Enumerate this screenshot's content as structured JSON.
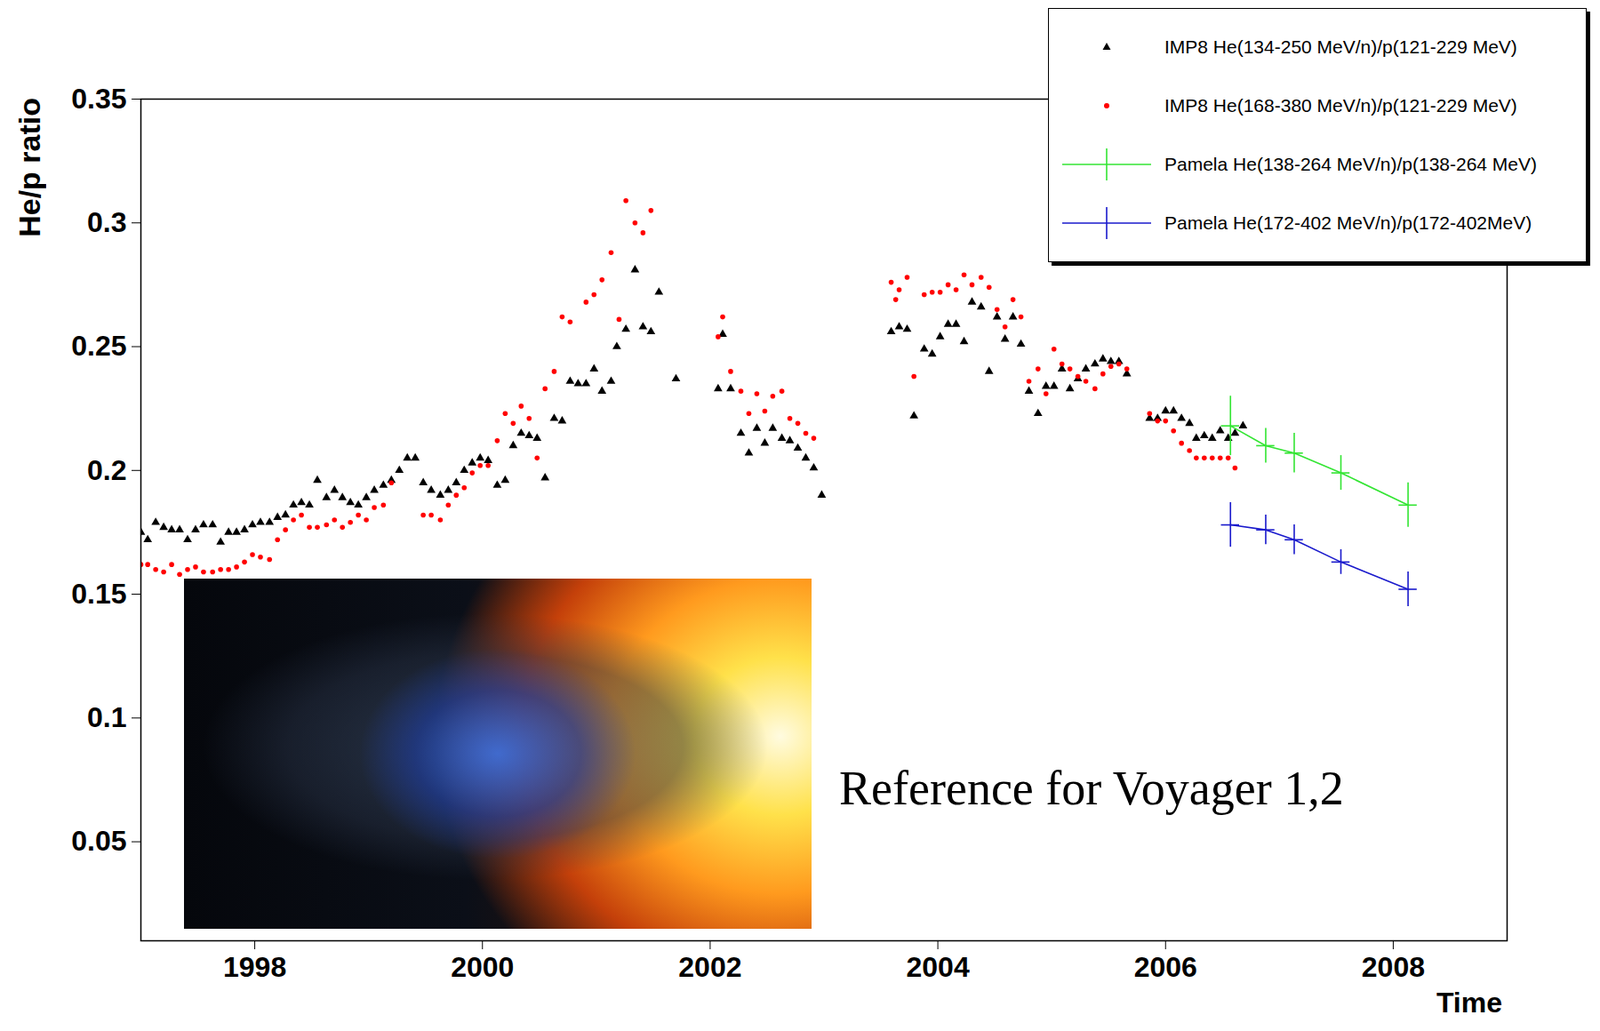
{
  "chart_data": {
    "type": "scatter",
    "x_label": "Time",
    "y_label": "He/p ratio",
    "annotation": "Reference for Voyager 1,2",
    "xlim": [
      1997,
      2009
    ],
    "xticks": [
      1998,
      2000,
      2002,
      2004,
      2006,
      2008
    ],
    "ylim": [
      0.01,
      0.35
    ],
    "yticks": [
      0.05,
      0.1,
      0.15,
      0.2,
      0.25,
      0.3,
      0.35
    ],
    "grid": false,
    "legend": "top-right",
    "series": [
      {
        "name": "IMP8 He(134-250 MeV/n)/p(121-229 MeV)",
        "type": "scatter",
        "marker": "triangle",
        "color": "#000000",
        "x": [
          1997.0,
          1997.06,
          1997.13,
          1997.2,
          1997.27,
          1997.34,
          1997.41,
          1997.48,
          1997.55,
          1997.63,
          1997.7,
          1997.77,
          1997.84,
          1997.91,
          1997.98,
          1998.05,
          1998.13,
          1998.2,
          1998.27,
          1998.34,
          1998.41,
          1998.48,
          1998.55,
          1998.63,
          1998.7,
          1998.77,
          1998.84,
          1998.91,
          1998.98,
          1999.05,
          1999.13,
          1999.2,
          1999.27,
          1999.34,
          1999.41,
          1999.48,
          1999.55,
          1999.63,
          1999.7,
          1999.77,
          1999.84,
          1999.91,
          1999.98,
          2000.05,
          2000.13,
          2000.2,
          2000.27,
          2000.34,
          2000.41,
          2000.48,
          2000.55,
          2000.63,
          2000.7,
          2000.77,
          2000.84,
          2000.91,
          2000.98,
          2001.05,
          2001.13,
          2001.18,
          2001.26,
          2001.34,
          2001.41,
          2001.48,
          2001.55,
          2001.7,
          2002.07,
          2002.11,
          2002.18,
          2002.27,
          2002.34,
          2002.41,
          2002.48,
          2002.55,
          2002.63,
          2002.7,
          2002.77,
          2002.84,
          2002.91,
          2002.98,
          2003.59,
          2003.66,
          2003.73,
          2003.79,
          2003.88,
          2003.95,
          2004.02,
          2004.09,
          2004.16,
          2004.23,
          2004.3,
          2004.38,
          2004.45,
          2004.52,
          2004.59,
          2004.66,
          2004.73,
          2004.8,
          2004.88,
          2004.95,
          2005.02,
          2005.09,
          2005.16,
          2005.23,
          2005.3,
          2005.38,
          2005.45,
          2005.52,
          2005.59,
          2005.66,
          2005.86,
          2005.93,
          2006.0,
          2006.07,
          2006.14,
          2006.21,
          2006.27,
          2006.34,
          2006.41,
          2006.48,
          2006.55,
          2006.61,
          2006.68
        ],
        "values": [
          0.175,
          0.172,
          0.179,
          0.177,
          0.176,
          0.176,
          0.172,
          0.176,
          0.178,
          0.178,
          0.171,
          0.175,
          0.175,
          0.176,
          0.178,
          0.179,
          0.179,
          0.181,
          0.182,
          0.186,
          0.187,
          0.186,
          0.196,
          0.189,
          0.192,
          0.189,
          0.187,
          0.186,
          0.189,
          0.192,
          0.194,
          0.196,
          0.2,
          0.205,
          0.205,
          0.195,
          0.192,
          0.19,
          0.192,
          0.195,
          0.2,
          0.203,
          0.205,
          0.204,
          0.194,
          0.196,
          0.21,
          0.215,
          0.214,
          0.213,
          0.197,
          0.221,
          0.22,
          0.236,
          0.235,
          0.235,
          0.241,
          0.232,
          0.236,
          0.25,
          0.257,
          0.281,
          0.258,
          0.256,
          0.272,
          0.237,
          0.233,
          0.255,
          0.233,
          0.215,
          0.207,
          0.217,
          0.211,
          0.217,
          0.213,
          0.212,
          0.209,
          0.205,
          0.201,
          0.19,
          0.256,
          0.258,
          0.257,
          0.222,
          0.249,
          0.247,
          0.254,
          0.259,
          0.259,
          0.252,
          0.268,
          0.266,
          0.24,
          0.262,
          0.253,
          0.262,
          0.251,
          0.232,
          0.223,
          0.234,
          0.234,
          0.241,
          0.233,
          0.237,
          0.241,
          0.243,
          0.245,
          0.244,
          0.244,
          0.239,
          0.221,
          0.221,
          0.224,
          0.224,
          0.221,
          0.219,
          0.213,
          0.214,
          0.213,
          0.216,
          0.213,
          0.215,
          0.218
        ]
      },
      {
        "name": "IMP8 He(168-380 MeV/n)/p(121-229 MeV)",
        "type": "scatter",
        "marker": "circle",
        "color": "#ff0000",
        "x": [
          1997.0,
          1997.06,
          1997.13,
          1997.2,
          1997.27,
          1997.34,
          1997.41,
          1997.48,
          1997.55,
          1997.63,
          1997.7,
          1997.77,
          1997.84,
          1997.91,
          1997.98,
          1998.05,
          1998.13,
          1998.2,
          1998.27,
          1998.34,
          1998.41,
          1998.48,
          1998.55,
          1998.63,
          1998.7,
          1998.77,
          1998.84,
          1998.91,
          1998.98,
          1999.05,
          1999.13,
          1999.2,
          1999.48,
          1999.55,
          1999.63,
          1999.7,
          1999.77,
          1999.84,
          1999.91,
          1999.98,
          2000.05,
          2000.13,
          2000.2,
          2000.27,
          2000.34,
          2000.41,
          2000.48,
          2000.55,
          2000.63,
          2000.7,
          2000.77,
          2000.91,
          2000.98,
          2001.05,
          2001.13,
          2001.2,
          2001.26,
          2001.34,
          2001.41,
          2001.48,
          2002.07,
          2002.11,
          2002.18,
          2002.27,
          2002.34,
          2002.41,
          2002.48,
          2002.55,
          2002.63,
          2002.7,
          2002.77,
          2002.84,
          2002.91,
          2003.59,
          2003.63,
          2003.66,
          2003.73,
          2003.79,
          2003.88,
          2003.95,
          2004.02,
          2004.09,
          2004.16,
          2004.23,
          2004.3,
          2004.38,
          2004.45,
          2004.52,
          2004.59,
          2004.66,
          2004.73,
          2004.8,
          2004.88,
          2004.95,
          2005.02,
          2005.09,
          2005.16,
          2005.23,
          2005.3,
          2005.38,
          2005.45,
          2005.52,
          2005.59,
          2005.66,
          2005.86,
          2005.93,
          2006.0,
          2006.07,
          2006.14,
          2006.21,
          2006.27,
          2006.34,
          2006.41,
          2006.48,
          2006.55,
          2006.61
        ],
        "values": [
          0.162,
          0.162,
          0.16,
          0.159,
          0.162,
          0.158,
          0.16,
          0.161,
          0.159,
          0.159,
          0.16,
          0.16,
          0.161,
          0.163,
          0.166,
          0.165,
          0.164,
          0.172,
          0.176,
          0.18,
          0.182,
          0.177,
          0.177,
          0.178,
          0.18,
          0.177,
          0.179,
          0.182,
          0.18,
          0.185,
          0.186,
          0.195,
          0.182,
          0.182,
          0.18,
          0.186,
          0.19,
          0.193,
          0.199,
          0.202,
          0.202,
          0.212,
          0.223,
          0.219,
          0.226,
          0.221,
          0.205,
          0.233,
          0.24,
          0.262,
          0.26,
          0.268,
          0.271,
          0.277,
          0.288,
          0.261,
          0.309,
          0.3,
          0.296,
          0.305,
          0.254,
          0.262,
          0.24,
          0.232,
          0.223,
          0.231,
          0.224,
          0.23,
          0.232,
          0.221,
          0.219,
          0.215,
          0.213,
          0.276,
          0.269,
          0.273,
          0.278,
          0.238,
          0.271,
          0.272,
          0.272,
          0.275,
          0.273,
          0.279,
          0.275,
          0.278,
          0.274,
          0.265,
          0.258,
          0.269,
          0.262,
          0.236,
          0.241,
          0.231,
          0.249,
          0.243,
          0.241,
          0.238,
          0.236,
          0.233,
          0.239,
          0.242,
          0.243,
          0.241,
          0.223,
          0.22,
          0.22,
          0.216,
          0.211,
          0.208,
          0.205,
          0.205,
          0.205,
          0.205,
          0.205,
          0.201
        ]
      },
      {
        "name": "Pamela He(138-264 MeV/n)/p(138-264 MeV)",
        "type": "line",
        "marker": "none",
        "line_style": "solid",
        "color": "#33e533",
        "x": [
          2006.57,
          2006.88,
          2007.13,
          2007.54,
          2008.13
        ],
        "values": [
          0.218,
          0.21,
          0.207,
          0.199,
          0.186
        ],
        "errors": [
          0.012,
          0.007,
          0.008,
          0.007,
          0.009
        ],
        "x_errors": [
          0.08,
          0.08,
          0.08,
          0.08,
          0.08
        ]
      },
      {
        "name": "Pamela He(172-402 MeV/n)/p(172-402MeV)",
        "type": "line",
        "marker": "none",
        "line_style": "solid",
        "color": "#1a1acc",
        "x": [
          2006.57,
          2006.88,
          2007.13,
          2007.54,
          2008.13
        ],
        "values": [
          0.178,
          0.176,
          0.172,
          0.163,
          0.152
        ],
        "errors": [
          0.009,
          0.006,
          0.006,
          0.005,
          0.007
        ],
        "x_errors": [
          0.08,
          0.08,
          0.08,
          0.08,
          0.08
        ]
      }
    ]
  }
}
